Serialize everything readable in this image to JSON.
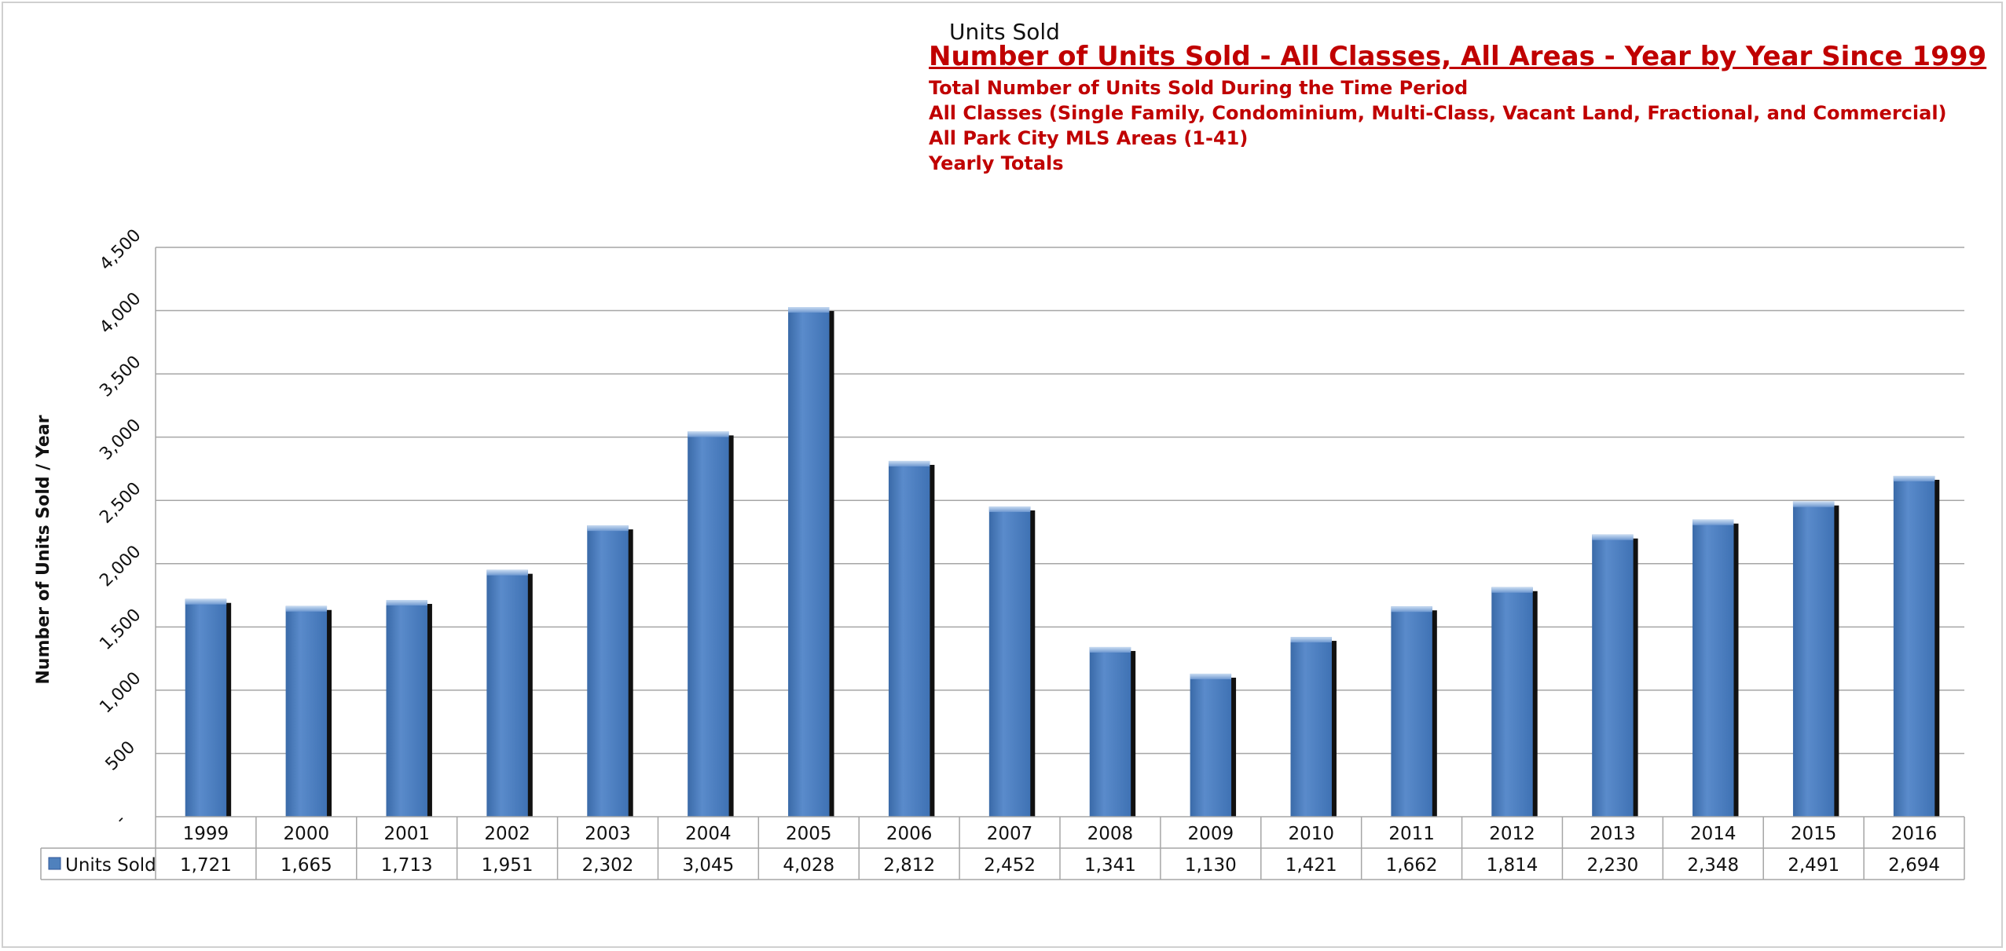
{
  "chart_data": {
    "type": "bar",
    "series_title": "Units Sold",
    "title": "Number of Units Sold - All Classes, All Areas - Year by Year Since 1999",
    "subtitle_lines": [
      "Total Number of Units Sold During the Time Period",
      "All Classes  (Single Family, Condominium, Multi-Class, Vacant Land, Fractional, and Commercial)",
      "All Park City MLS Areas (1-41)",
      "Yearly Totals"
    ],
    "ylabel": "Number of Units Sold / Year",
    "xlabel": "",
    "ylim": [
      0,
      4500
    ],
    "yticks": [
      0,
      500,
      1000,
      1500,
      2000,
      2500,
      3000,
      3500,
      4000,
      4500
    ],
    "ytick_labels": [
      "-",
      "500",
      "1,000",
      "1,500",
      "2,000",
      "2,500",
      "3,000",
      "3,500",
      "4,000",
      "4,500"
    ],
    "grid": true,
    "categories": [
      "1999",
      "2000",
      "2001",
      "2002",
      "2003",
      "2004",
      "2005",
      "2006",
      "2007",
      "2008",
      "2009",
      "2010",
      "2011",
      "2012",
      "2013",
      "2014",
      "2015",
      "2016"
    ],
    "series": [
      {
        "name": "Units Sold",
        "color": "#4f81bd",
        "values": [
          1721,
          1665,
          1713,
          1951,
          2302,
          3045,
          4028,
          2812,
          2452,
          1341,
          1130,
          1421,
          1662,
          1814,
          2230,
          2348,
          2491,
          2694
        ],
        "value_labels": [
          "1,721",
          "1,665",
          "1,713",
          "1,951",
          "2,302",
          "3,045",
          "4,028",
          "2,812",
          "2,452",
          "1,341",
          "1,130",
          "1,421",
          "1,662",
          "1,814",
          "2,230",
          "2,348",
          "2,491",
          "2,694"
        ]
      }
    ],
    "data_table": true
  }
}
